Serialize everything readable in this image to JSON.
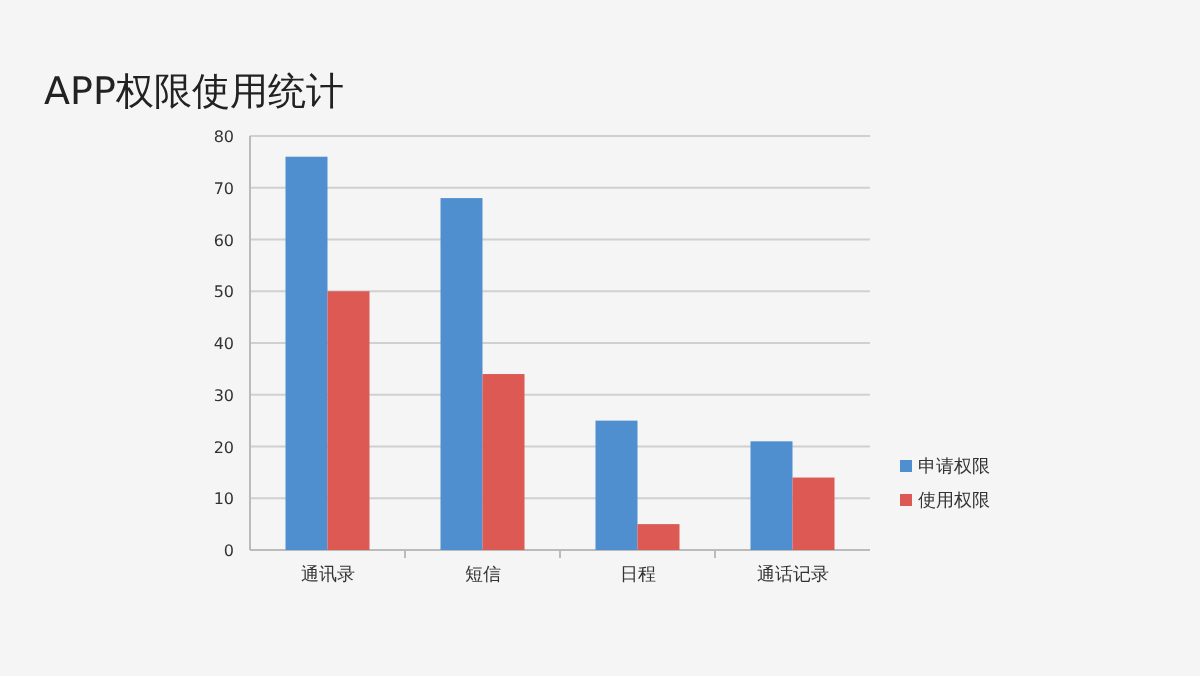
{
  "chart_data": {
    "type": "bar",
    "title": "APP权限使用统计",
    "categories": [
      "通讯录",
      "短信",
      "日程",
      "通话记录"
    ],
    "series": [
      {
        "name": "申请权限",
        "color": "#4f8fcf",
        "values": [
          76,
          68,
          25,
          21
        ]
      },
      {
        "name": "使用权限",
        "color": "#dd5953",
        "values": [
          50,
          34,
          5,
          14
        ]
      }
    ],
    "ylim": [
      0,
      80
    ],
    "yticks": [
      0,
      10,
      20,
      30,
      40,
      50,
      60,
      70,
      80
    ],
    "grid": "y",
    "legend": "right"
  }
}
